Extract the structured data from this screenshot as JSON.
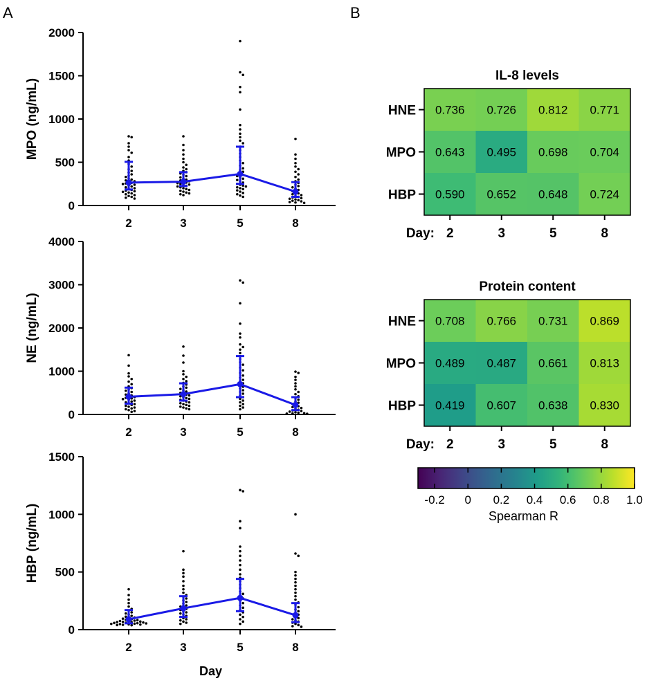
{
  "panel_labels": {
    "a": "A",
    "b": "B"
  },
  "chart_data": [
    {
      "id": "mpo",
      "type": "scatter",
      "ylabel": "MPO (ng/mL)",
      "xlabel": "",
      "categories": [
        "2",
        "3",
        "5",
        "8"
      ],
      "ylim": [
        0,
        2000
      ],
      "yticks": [
        0,
        500,
        1000,
        1500,
        2000
      ],
      "medians": [
        265,
        275,
        365,
        160
      ],
      "iqr": [
        [
          185,
          505
        ],
        [
          225,
          385
        ],
        [
          250,
          680
        ],
        [
          100,
          270
        ]
      ],
      "points": [
        [
          800,
          790,
          720,
          680,
          640,
          610,
          560,
          520,
          480,
          450,
          420,
          400,
          380,
          360,
          345,
          330,
          310,
          300,
          290,
          280,
          270,
          262,
          255,
          248,
          240,
          230,
          220,
          210,
          200,
          190,
          180,
          172,
          165,
          158,
          150,
          140,
          130,
          120,
          110,
          100,
          90,
          80
        ],
        [
          800,
          700,
          640,
          590,
          540,
          500,
          470,
          440,
          420,
          400,
          385,
          370,
          355,
          340,
          325,
          310,
          300,
          290,
          280,
          272,
          265,
          258,
          250,
          242,
          235,
          228,
          220,
          210,
          200,
          190,
          180,
          170,
          160,
          150,
          140,
          130,
          120
        ],
        [
          1900,
          1540,
          1510,
          1370,
          1310,
          1110,
          930,
          880,
          830,
          790,
          750,
          720,
          680,
          640,
          600,
          560,
          520,
          490,
          460,
          430,
          410,
          390,
          370,
          355,
          340,
          325,
          310,
          295,
          280,
          265,
          250,
          240,
          230,
          220,
          210,
          200,
          190,
          175,
          160,
          145,
          130,
          115,
          100
        ],
        [
          770,
          590,
          540,
          490,
          450,
          420,
          390,
          360,
          330,
          300,
          280,
          260,
          240,
          225,
          210,
          195,
          180,
          165,
          150,
          140,
          130,
          120,
          110,
          100,
          92,
          85,
          78,
          70,
          62,
          55,
          48,
          40,
          35,
          30
        ]
      ]
    },
    {
      "id": "ne",
      "type": "scatter",
      "ylabel": "NE (ng/mL)",
      "xlabel": "",
      "categories": [
        "2",
        "3",
        "5",
        "8"
      ],
      "ylim": [
        0,
        4000
      ],
      "yticks": [
        0,
        1000,
        2000,
        3000,
        4000
      ],
      "medians": [
        410,
        470,
        700,
        220
      ],
      "iqr": [
        [
          250,
          620
        ],
        [
          320,
          720
        ],
        [
          400,
          1350
        ],
        [
          100,
          400
        ]
      ],
      "points": [
        [
          1370,
          1130,
          950,
          880,
          820,
          760,
          700,
          650,
          610,
          580,
          550,
          520,
          490,
          460,
          440,
          420,
          400,
          385,
          370,
          355,
          340,
          320,
          300,
          280,
          260,
          240,
          220,
          200,
          180,
          160,
          140,
          120,
          100,
          80,
          60
        ],
        [
          1570,
          1360,
          1200,
          1000,
          930,
          870,
          820,
          770,
          730,
          690,
          650,
          620,
          590,
          560,
          530,
          500,
          480,
          460,
          440,
          420,
          400,
          380,
          360,
          340,
          320,
          300,
          280,
          260,
          240,
          220,
          200,
          180,
          160,
          140,
          120
        ],
        [
          3100,
          3050,
          2570,
          2100,
          1870,
          1780,
          1620,
          1560,
          1500,
          1420,
          1350,
          1280,
          1210,
          1150,
          1080,
          1020,
          960,
          900,
          850,
          800,
          760,
          720,
          680,
          640,
          600,
          560,
          520,
          480,
          440,
          400,
          360,
          320,
          280,
          240,
          200,
          160,
          120
        ],
        [
          990,
          960,
          870,
          800,
          720,
          650,
          580,
          520,
          470,
          420,
          380,
          340,
          300,
          270,
          240,
          210,
          190,
          170,
          150,
          130,
          110,
          95,
          80,
          65,
          50,
          40,
          30,
          25,
          20,
          15
        ]
      ]
    },
    {
      "id": "hbp",
      "type": "scatter",
      "ylabel": "HBP (ng/mL)",
      "xlabel": "Day",
      "categories": [
        "2",
        "3",
        "5",
        "8"
      ],
      "ylim": [
        0,
        1500
      ],
      "yticks": [
        0,
        500,
        1000,
        1500
      ],
      "medians": [
        90,
        185,
        275,
        125
      ],
      "iqr": [
        [
          55,
          170
        ],
        [
          110,
          290
        ],
        [
          160,
          440
        ],
        [
          65,
          230
        ]
      ],
      "points": [
        [
          350,
          300,
          260,
          230,
          200,
          180,
          165,
          150,
          140,
          130,
          120,
          112,
          105,
          100,
          95,
          90,
          86,
          82,
          78,
          75,
          72,
          70,
          68,
          66,
          64,
          62,
          60,
          58,
          56,
          54,
          52,
          50,
          48,
          46,
          44,
          42,
          40,
          38
        ],
        [
          680,
          520,
          490,
          460,
          420,
          380,
          350,
          320,
          300,
          285,
          270,
          255,
          240,
          225,
          210,
          200,
          190,
          180,
          170,
          160,
          150,
          140,
          130,
          120,
          110,
          100,
          90,
          80,
          70,
          60,
          50
        ],
        [
          1210,
          1200,
          940,
          880,
          720,
          680,
          640,
          600,
          560,
          520,
          480,
          450,
          420,
          390,
          360,
          330,
          310,
          290,
          270,
          250,
          230,
          210,
          190,
          170,
          150,
          130,
          110,
          90,
          70,
          50
        ],
        [
          1000,
          660,
          640,
          500,
          470,
          440,
          410,
          380,
          350,
          320,
          290,
          260,
          235,
          215,
          195,
          175,
          160,
          145,
          130,
          115,
          100,
          90,
          80,
          70,
          60,
          50,
          40,
          30,
          25
        ]
      ]
    },
    {
      "id": "il8",
      "type": "heatmap",
      "title": "IL-8 levels",
      "rows": [
        "HNE",
        "MPO",
        "HBP"
      ],
      "cols": [
        "2",
        "3",
        "5",
        "8"
      ],
      "col_prefix": "Day:",
      "values": [
        [
          0.736,
          0.726,
          0.812,
          0.771
        ],
        [
          0.643,
          0.495,
          0.698,
          0.704
        ],
        [
          0.59,
          0.652,
          0.648,
          0.724
        ]
      ]
    },
    {
      "id": "protein",
      "type": "heatmap",
      "title": "Protein content",
      "rows": [
        "HNE",
        "MPO",
        "HBP"
      ],
      "cols": [
        "2",
        "3",
        "5",
        "8"
      ],
      "col_prefix": "Day:",
      "values": [
        [
          0.708,
          0.766,
          0.731,
          0.869
        ],
        [
          0.489,
          0.487,
          0.661,
          0.813
        ],
        [
          0.419,
          0.607,
          0.638,
          0.83
        ]
      ]
    }
  ],
  "colorbar": {
    "label": "Spearman R",
    "range": [
      -0.3,
      1.0
    ],
    "ticks": [
      -0.2,
      0,
      0.2,
      0.4,
      0.6,
      0.8,
      1.0
    ],
    "tick_labels": [
      "-0.2",
      "0",
      "0.2",
      "0.4",
      "0.6",
      "0.8",
      "1.0"
    ]
  },
  "colors": {
    "summary_line": "#1a1ae6",
    "points": "#000000",
    "axis": "#000000"
  }
}
